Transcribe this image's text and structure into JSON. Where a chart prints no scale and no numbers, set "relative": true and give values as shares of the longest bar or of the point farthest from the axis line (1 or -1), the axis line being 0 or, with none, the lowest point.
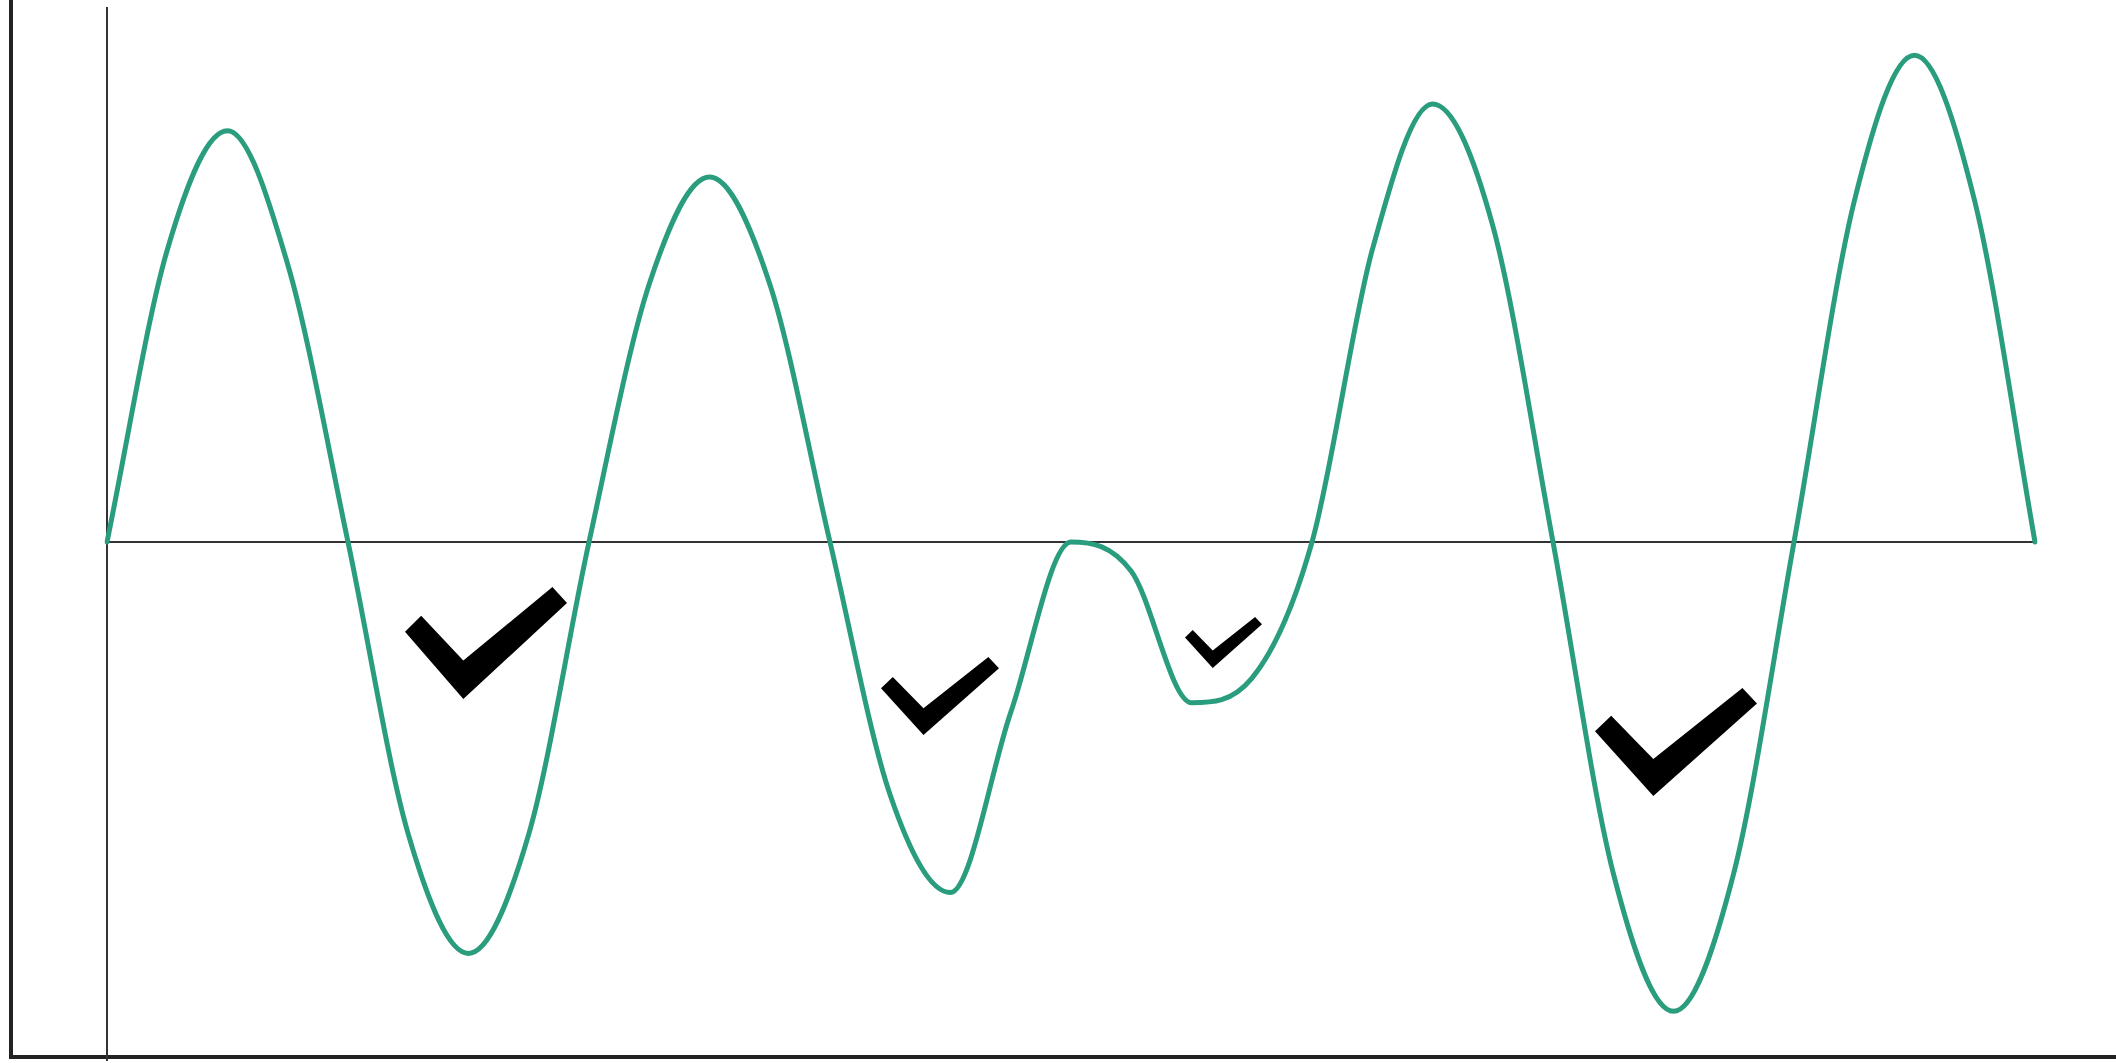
{
  "chart_data": {
    "type": "line",
    "relative": true,
    "categories": [
      null,
      null,
      null,
      null,
      null,
      null,
      null,
      null,
      null,
      null,
      null,
      null,
      null,
      null,
      null,
      null,
      null,
      null,
      null,
      null,
      null,
      null,
      null,
      null,
      null,
      null,
      null,
      null,
      null,
      null,
      null,
      null,
      null
    ],
    "series": [
      {
        "color": "#2a9d7f",
        "values": [
          0,
          0.6,
          0.845,
          0.57,
          0,
          -0.6,
          -0.845,
          -0.6,
          0,
          0.53,
          0.75,
          0.53,
          0,
          -0.52,
          -0.72,
          -0.35,
          0,
          -0.06,
          -0.33,
          -0.28,
          0,
          0.6,
          0.9,
          0.65,
          0,
          -0.68,
          -0.964,
          -0.68,
          0,
          0.7,
          1,
          0.7,
          0
        ]
      }
    ],
    "grid": false,
    "legend": false,
    "marker": "none",
    "line_style": "solid"
  }
}
